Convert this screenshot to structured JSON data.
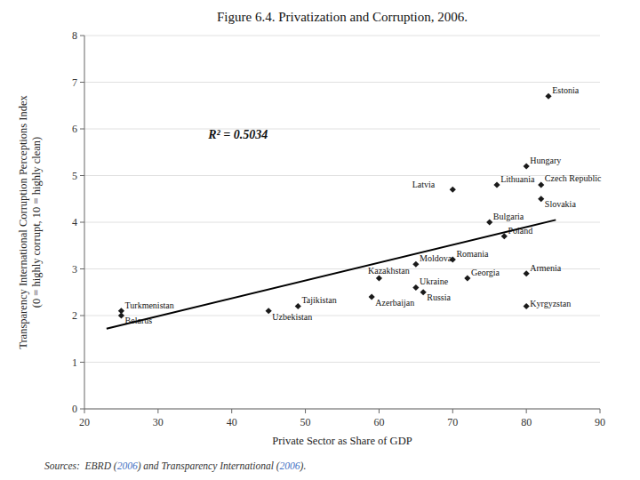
{
  "chart_data": {
    "type": "scatter",
    "title": "Figure 6.4.  Privatization and Corruption, 2006.",
    "x_label": "Private Sector as Share of GDP",
    "y_label": "Transparency International Corruption Perceptions Index\n(0 = highly corrupt, 10 = highly clean)",
    "xlim": [
      20,
      90
    ],
    "ylim": [
      0,
      8
    ],
    "xticks": [
      20,
      30,
      40,
      50,
      60,
      70,
      80,
      90
    ],
    "yticks": [
      0,
      1,
      2,
      3,
      4,
      5,
      6,
      7,
      8
    ],
    "grid": true,
    "series": [
      {
        "type": "scatter",
        "marker": "diamond",
        "color": "#1a1a1a",
        "x": [
          25,
          25,
          45,
          49,
          59,
          60,
          65,
          65,
          66,
          70,
          72,
          70,
          75,
          76,
          77,
          80,
          80,
          80,
          82,
          82,
          83
        ],
        "values": [
          2.1,
          2.0,
          2.1,
          2.2,
          2.4,
          2.8,
          3.1,
          2.6,
          2.5,
          3.2,
          2.8,
          4.7,
          4.0,
          4.8,
          3.7,
          2.9,
          2.2,
          5.2,
          4.8,
          4.5,
          6.7
        ],
        "labels": [
          "Turkmenistan",
          "Belarus",
          "Uzbekistan",
          "Tajikistan",
          "Azerbaijan",
          "Kazakhstan",
          "Moldova",
          "Ukraine",
          "Russia",
          "Romania",
          "Georgia",
          "Latvia",
          "Bulgaria",
          "Lithuania",
          "Poland",
          "Armenia",
          "Kyrgyzstan",
          "Hungary",
          "Czech Republic",
          "Slovakia",
          "Estonia"
        ]
      },
      {
        "type": "line",
        "line_style": "solid",
        "color": "#000000",
        "x": [
          23,
          84
        ],
        "values": [
          1.72,
          4.05
        ]
      }
    ],
    "annotation": "R² = 0.5034",
    "source": [
      {
        "text": "Sources:",
        "color": "#333333"
      },
      {
        "text": "  EBRD (",
        "color": "#333333"
      },
      {
        "text": "2006",
        "color": "#4472c4"
      },
      {
        "text": ") and Transparency International (",
        "color": "#333333"
      },
      {
        "text": "2006",
        "color": "#4472c4"
      },
      {
        "text": ").",
        "color": "#333333"
      }
    ]
  }
}
